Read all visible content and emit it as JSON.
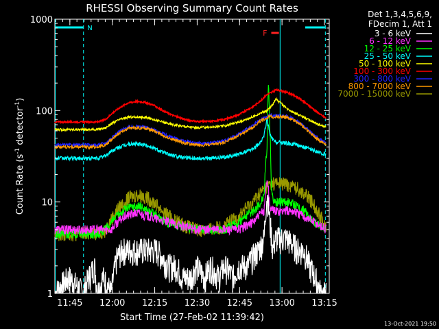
{
  "chart_data": {
    "type": "line",
    "title": "RHESSI Observing Summary Count Rates",
    "xlabel": "Start Time (27-Feb-02 11:39:42)",
    "ylabel_main": "Count Rate (s",
    "ylabel_sup1": "-1",
    "ylabel_mid": " detector",
    "ylabel_sup2": "-1",
    "ylabel_end": ")",
    "y_scale": "log",
    "ylim": [
      1,
      1000
    ],
    "xlim_minutes": [
      0,
      97
    ],
    "y_ticks": [
      {
        "value": 1,
        "label": "1"
      },
      {
        "value": 10,
        "label": "10"
      },
      {
        "value": 100,
        "label": "100"
      },
      {
        "value": 1000,
        "label": "1000"
      }
    ],
    "x_ticks": [
      {
        "minute": 5.3,
        "label": "11:45"
      },
      {
        "minute": 20.3,
        "label": "12:00"
      },
      {
        "minute": 35.3,
        "label": "12:15"
      },
      {
        "minute": 50.3,
        "label": "12:30"
      },
      {
        "minute": 65.3,
        "label": "12:45"
      },
      {
        "minute": 80.3,
        "label": "13:00"
      },
      {
        "minute": 95.3,
        "label": "13:15"
      }
    ],
    "legend_header": [
      "Det 1,3,4,5,6,9,",
      "FDecim 1, Att 1"
    ],
    "series": [
      {
        "name": "3 - 6 keV",
        "color": "#ffffff",
        "x": [
          0,
          5,
          10,
          14,
          15,
          17,
          20,
          22,
          24,
          27,
          30,
          33,
          36,
          38,
          40,
          43,
          45,
          48,
          50,
          53,
          55,
          58,
          60,
          63,
          65,
          68,
          70,
          72,
          73,
          74,
          75,
          76,
          77,
          78,
          80,
          82,
          84,
          86,
          88,
          90,
          92,
          94,
          96
        ],
        "y": [
          1,
          1.5,
          1,
          2,
          1,
          1.5,
          1,
          2.5,
          3,
          3,
          3,
          3,
          3,
          2.5,
          2,
          2,
          1.5,
          1.5,
          2,
          1.5,
          2,
          1.5,
          2,
          1.5,
          2,
          2,
          2.5,
          3,
          3.5,
          4,
          12,
          6,
          3,
          4,
          4,
          4,
          3.5,
          3,
          3,
          2,
          1.5,
          1,
          1
        ]
      },
      {
        "name": "6 - 12 keV",
        "color": "#ff33ff",
        "x": [
          0,
          10,
          15,
          20,
          22,
          25,
          28,
          30,
          33,
          36,
          40,
          45,
          50,
          55,
          60,
          65,
          70,
          72,
          74,
          75,
          76,
          77,
          78,
          80,
          82,
          84,
          86,
          88,
          90,
          92,
          94,
          96
        ],
        "y": [
          5,
          5,
          5,
          5,
          6,
          7,
          7.5,
          7.5,
          7,
          6.5,
          6,
          5.5,
          5,
          5,
          5,
          5,
          6,
          7,
          8,
          18,
          9,
          8,
          8,
          8,
          8,
          8,
          7.5,
          7,
          6.5,
          6,
          5.5,
          5
        ]
      },
      {
        "name": "12 - 25 keV",
        "color": "#00ff00",
        "x": [
          0,
          10,
          15,
          18,
          20,
          22,
          25,
          28,
          30,
          33,
          36,
          40,
          45,
          50,
          55,
          60,
          65,
          70,
          72,
          74,
          75,
          75.5,
          76,
          76.5,
          77,
          78,
          80,
          82,
          84,
          86,
          88,
          90,
          92,
          94,
          96
        ],
        "y": [
          4.5,
          4.5,
          4.5,
          5,
          6,
          7,
          8.5,
          9,
          9,
          8,
          7,
          6,
          5.5,
          5,
          5,
          5,
          6,
          8,
          9,
          12,
          40,
          180,
          60,
          15,
          11,
          10,
          10,
          10,
          9.5,
          9,
          8,
          7,
          6,
          5.5,
          5
        ]
      },
      {
        "name": "25 - 50 keV",
        "color": "#00ffff",
        "x": [
          0,
          10,
          15,
          18,
          20,
          23,
          26,
          29,
          32,
          35,
          38,
          42,
          46,
          50,
          55,
          60,
          65,
          70,
          73,
          74,
          75,
          76,
          77,
          78,
          80,
          82,
          84,
          86,
          88,
          90,
          92,
          94,
          96
        ],
        "y": [
          30,
          30,
          30,
          32,
          36,
          40,
          43,
          43,
          42,
          39,
          35,
          32,
          31,
          30,
          30,
          31,
          33,
          38,
          45,
          55,
          80,
          55,
          48,
          45,
          45,
          44,
          43,
          42,
          40,
          38,
          36,
          34,
          33
        ]
      },
      {
        "name": "50 - 100 keV",
        "color": "#ffff00",
        "x": [
          0,
          10,
          15,
          18,
          20,
          23,
          26,
          29,
          32,
          35,
          38,
          42,
          46,
          50,
          55,
          60,
          65,
          70,
          73,
          75,
          77,
          78,
          80,
          82,
          84,
          86,
          88,
          90,
          92,
          94,
          96
        ],
        "y": [
          62,
          62,
          62,
          65,
          72,
          80,
          85,
          85,
          84,
          80,
          75,
          70,
          67,
          65,
          66,
          68,
          75,
          85,
          95,
          100,
          115,
          135,
          120,
          105,
          98,
          90,
          85,
          78,
          73,
          69,
          66
        ]
      },
      {
        "name": "100 - 300 keV",
        "color": "#ff0000",
        "x": [
          0,
          10,
          15,
          18,
          20,
          23,
          26,
          29,
          32,
          35,
          38,
          42,
          46,
          50,
          55,
          60,
          65,
          70,
          73,
          75,
          77,
          78,
          80,
          82,
          84,
          86,
          88,
          90,
          92,
          94,
          96
        ],
        "y": [
          75,
          75,
          75,
          80,
          92,
          108,
          122,
          126,
          123,
          114,
          100,
          88,
          80,
          76,
          76,
          80,
          90,
          110,
          130,
          150,
          160,
          168,
          165,
          158,
          150,
          138,
          125,
          112,
          100,
          90,
          82
        ]
      },
      {
        "name": "300 - 800 keV",
        "color": "#2222ff",
        "x": [
          0,
          10,
          15,
          18,
          20,
          23,
          26,
          29,
          32,
          35,
          38,
          42,
          46,
          50,
          55,
          60,
          65,
          70,
          73,
          75,
          76,
          77,
          78,
          80,
          82,
          84,
          86,
          88,
          90,
          92,
          94,
          96
        ],
        "y": [
          42,
          42,
          42,
          44,
          50,
          60,
          66,
          67,
          66,
          62,
          56,
          50,
          46,
          44,
          44,
          47,
          55,
          68,
          80,
          85,
          90,
          88,
          88,
          88,
          86,
          82,
          76,
          68,
          60,
          53,
          48,
          45
        ]
      },
      {
        "name": "800 - 7000 keV",
        "color": "#ff9900",
        "x": [
          0,
          10,
          15,
          18,
          20,
          23,
          26,
          29,
          32,
          35,
          38,
          42,
          46,
          50,
          55,
          60,
          65,
          70,
          73,
          75,
          76,
          77,
          78,
          80,
          82,
          84,
          86,
          88,
          90,
          92,
          94,
          96
        ],
        "y": [
          40,
          40,
          40,
          42,
          48,
          58,
          64,
          65,
          64,
          60,
          54,
          48,
          44,
          42,
          42,
          45,
          53,
          66,
          78,
          83,
          86,
          85,
          86,
          86,
          84,
          80,
          74,
          66,
          58,
          51,
          46,
          43
        ]
      },
      {
        "name": "7000 - 15000 keV",
        "color": "#999900",
        "x": [
          0,
          10,
          15,
          18,
          20,
          23,
          26,
          29,
          32,
          35,
          38,
          42,
          46,
          50,
          55,
          60,
          65,
          70,
          73,
          75,
          77,
          78,
          80,
          82,
          84,
          86,
          88,
          90,
          92,
          94,
          96
        ],
        "y": [
          4.5,
          4.5,
          4.5,
          5,
          6.5,
          9,
          11,
          12,
          11.5,
          10,
          8,
          6.5,
          5.5,
          5,
          5,
          5.5,
          7,
          10,
          13,
          15,
          16,
          16,
          16,
          15.5,
          15,
          14,
          12.5,
          11,
          9,
          7,
          5
        ]
      }
    ],
    "annotations": {
      "top_left_bar_label": "N",
      "flare_label": "F"
    },
    "reference_lines_minutes": {
      "solid": [
        0,
        79.5
      ],
      "dashed": [
        10,
        95.5
      ]
    },
    "night_intervals_minutes": [
      [
        0,
        10
      ],
      [
        88.5,
        95.5
      ]
    ],
    "flare_interval_minutes": [
      76.5,
      79.2
    ]
  },
  "footer_timestamp": "13-Oct-2021 19:50"
}
